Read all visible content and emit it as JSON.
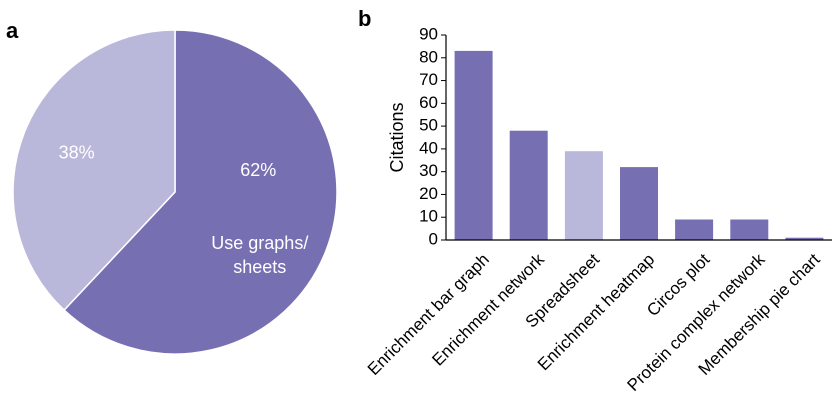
{
  "panels": {
    "a": "a",
    "b": "b"
  },
  "colors": {
    "primary": "#7670B3",
    "light": "#B9B8DA",
    "slice_border": "#ffffff",
    "axis": "#000000"
  },
  "chart_data": [
    {
      "type": "pie",
      "panel": "a",
      "slices": [
        {
          "label": "Use graphs/ sheets",
          "label_lines": [
            "Use graphs/",
            "sheets"
          ],
          "percent_label": "62%",
          "value": 62,
          "color": "#7670B3"
        },
        {
          "label": "",
          "label_lines": [],
          "percent_label": "38%",
          "value": 38,
          "color": "#B9B8DA"
        }
      ]
    },
    {
      "type": "bar",
      "panel": "b",
      "ylabel": "Citations",
      "ylim": [
        0,
        90
      ],
      "yticks": [
        0,
        10,
        20,
        30,
        40,
        50,
        60,
        70,
        80,
        90
      ],
      "grid": false,
      "categories": [
        "Enrichment bar graph",
        "Enrichment network",
        "Spreadsheet",
        "Enrichment heatmap",
        "Circos plot",
        "Protein complex network",
        "Membership pie chart"
      ],
      "values": [
        83,
        48,
        39,
        32,
        9,
        9,
        1
      ],
      "bar_colors": [
        "#7670B3",
        "#7670B3",
        "#B9B8DA",
        "#7670B3",
        "#7670B3",
        "#7670B3",
        "#7670B3"
      ]
    }
  ]
}
